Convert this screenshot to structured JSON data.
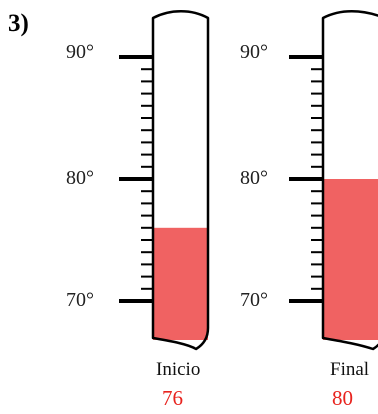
{
  "problem_number": "3)",
  "fill_color": "#F06262",
  "value_color": "#E8231E",
  "thermometers": [
    {
      "caption": "Inicio",
      "reading": 76,
      "reading_text": "76",
      "scale_labels": [
        "90°",
        "80°",
        "70°"
      ]
    },
    {
      "caption": "Final",
      "reading": 80,
      "reading_text": "80",
      "scale_labels": [
        "90°",
        "80°",
        "70°"
      ]
    }
  ]
}
